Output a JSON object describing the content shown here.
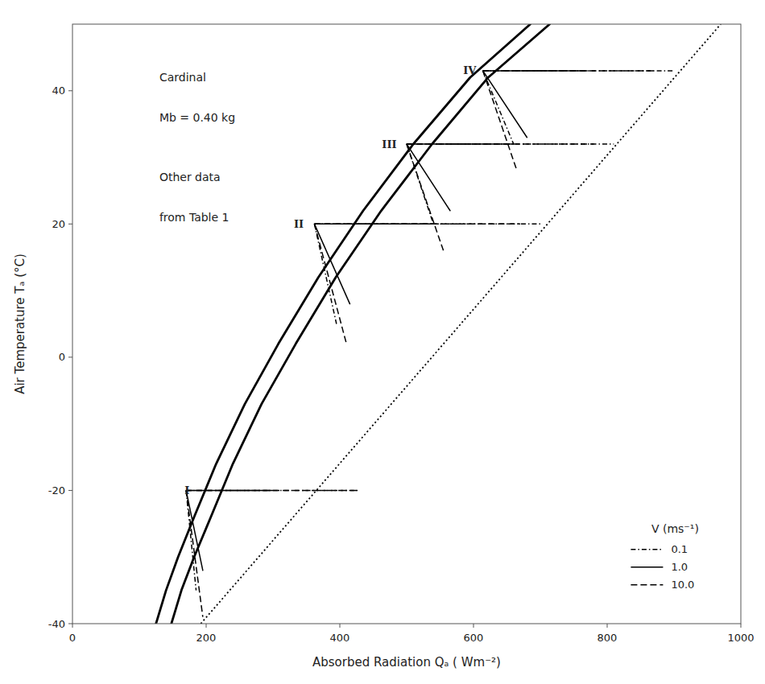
{
  "chart_data": {
    "type": "line",
    "xlabel": "Absorbed Radiation Qₐ  ( Wm⁻²)",
    "ylabel": "Air Temperature Tₐ  (°C)",
    "xlim": [
      0,
      1000
    ],
    "ylim": [
      -40,
      50
    ],
    "xticks": [
      0,
      200,
      400,
      600,
      800,
      1000
    ],
    "yticks": [
      -40,
      -20,
      0,
      20,
      40
    ],
    "grid": false,
    "legend": "lower right",
    "legend_title": "V (ms⁻¹)",
    "series": [
      {
        "color": "#000000",
        "line_style": "solid",
        "x": [
          125,
          140,
          158,
          182,
          215,
          258,
          308,
          368,
          435,
          510,
          595,
          685
        ],
        "values": [
          -40,
          -35,
          -30,
          -24,
          -16,
          -7,
          2,
          12,
          22,
          32,
          42,
          50
        ]
      },
      {
        "color": "#000000",
        "line_style": "solid",
        "x": [
          148,
          163,
          182,
          207,
          240,
          283,
          334,
          394,
          462,
          538,
          622,
          714
        ],
        "values": [
          -40,
          -35,
          -30,
          -24,
          -16,
          -7,
          2,
          12,
          22,
          32,
          42,
          50
        ]
      },
      {
        "color": "#000000",
        "line_style": "dotted",
        "x": [
          192,
          970
        ],
        "values": [
          -40,
          50
        ]
      },
      {
        "name": "0.1",
        "color": "#000000",
        "line_style": "dashdot",
        "x": [
          170,
          430,
          null,
          170,
          185,
          null,
          362,
          700,
          null,
          362,
          395,
          null,
          500,
          810,
          null,
          500,
          540,
          null,
          614,
          900,
          null,
          614,
          660
        ],
        "values": [
          -20,
          -20,
          null,
          -20,
          -35,
          null,
          20,
          20,
          null,
          20,
          5,
          null,
          32,
          32,
          null,
          32,
          20,
          null,
          43,
          43,
          null,
          43,
          32
        ]
      },
      {
        "name": "1.0",
        "color": "#000000",
        "line_style": "solid",
        "x": [
          170,
          300,
          null,
          170,
          195,
          null,
          362,
          540,
          null,
          362,
          415,
          null,
          500,
          660,
          null,
          500,
          565,
          null,
          614,
          770,
          null,
          614,
          680
        ],
        "values": [
          -20,
          -20,
          null,
          -20,
          -32,
          null,
          20,
          20,
          null,
          20,
          8,
          null,
          32,
          32,
          null,
          32,
          22,
          null,
          43,
          43,
          null,
          43,
          33
        ]
      },
      {
        "name": "10.0",
        "color": "#000000",
        "line_style": "dashed",
        "x": [
          170,
          430,
          null,
          170,
          195,
          null,
          362,
          670,
          null,
          362,
          410,
          null,
          500,
          780,
          null,
          500,
          555,
          null,
          614,
          870,
          null,
          614,
          665
        ],
        "values": [
          -20,
          -20,
          null,
          -20,
          -39,
          null,
          20,
          20,
          null,
          20,
          2,
          null,
          32,
          32,
          null,
          32,
          16,
          null,
          43,
          43,
          null,
          43,
          28
        ]
      }
    ],
    "zone_labels": [
      {
        "text": "I",
        "x": 175,
        "y": -20
      },
      {
        "text": "II",
        "x": 346,
        "y": 20
      },
      {
        "text": "III",
        "x": 485,
        "y": 32
      },
      {
        "text": "IV",
        "x": 604,
        "y": 43
      }
    ],
    "annotations": [
      {
        "text": "Cardinal",
        "x": 130,
        "y": 43
      },
      {
        "text": "Mb = 0.40 kg",
        "x": 130,
        "y": 37
      },
      {
        "text": "Other data",
        "x": 130,
        "y": 28
      },
      {
        "text": "from Table 1",
        "x": 130,
        "y": 22
      }
    ]
  }
}
